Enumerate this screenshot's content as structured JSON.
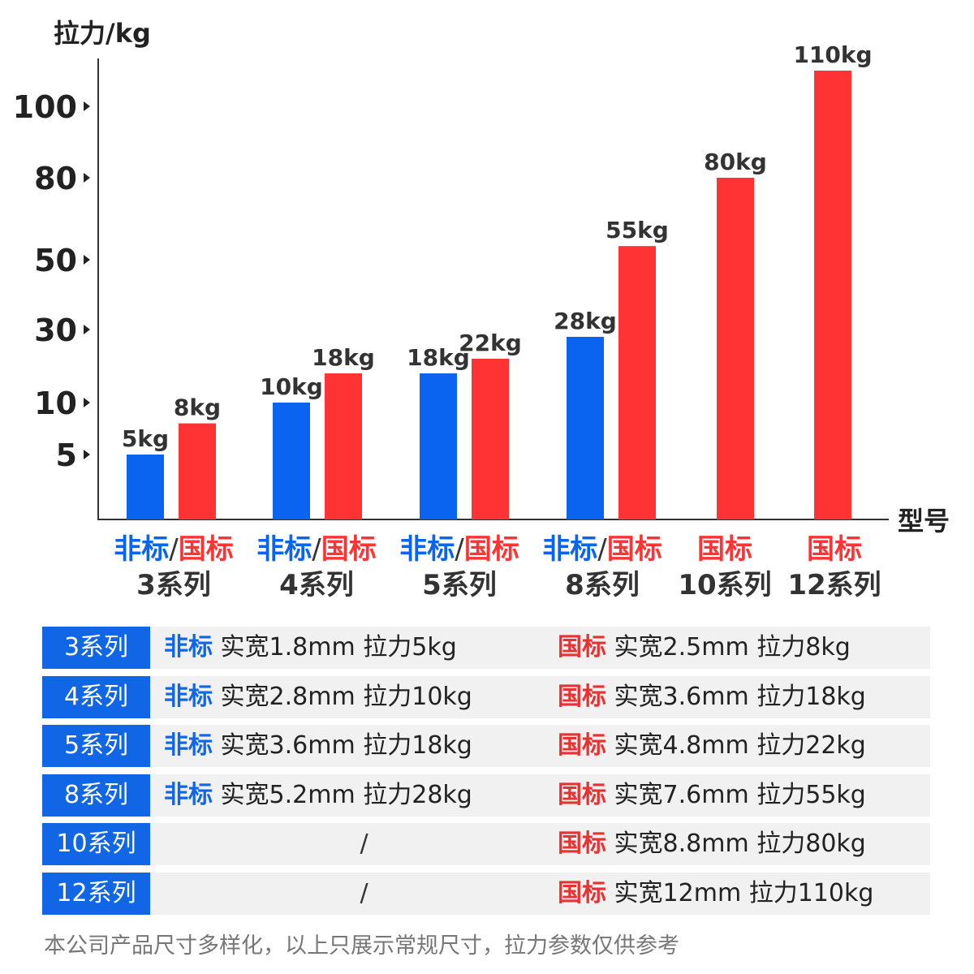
{
  "chart_data": {
    "type": "bar",
    "ylabel": "拉力/kg",
    "xlabel": "型号",
    "y_ticks": [
      {
        "label": "5",
        "value": 5
      },
      {
        "label": "10",
        "value": 10
      },
      {
        "label": "30",
        "value": 30
      },
      {
        "label": "50",
        "value": 50
      },
      {
        "label": "80",
        "value": 80
      },
      {
        "label": "100",
        "value": 100
      }
    ],
    "y_scale_note": "non-linear axis: ticks mapped piecewise",
    "legend": {
      "nonstandard": "非标",
      "standard": "国标",
      "separator": "/"
    },
    "categories": [
      {
        "name": "3系列",
        "kinds": "非标/国标"
      },
      {
        "name": "4系列",
        "kinds": "非标/国标"
      },
      {
        "name": "5系列",
        "kinds": "非标/国标"
      },
      {
        "name": "8系列",
        "kinds": "非标/国标"
      },
      {
        "name": "10系列",
        "kinds": "国标"
      },
      {
        "name": "12系列",
        "kinds": "国标"
      }
    ],
    "series": [
      {
        "name": "非标",
        "color": "#0a64f0",
        "values": [
          5,
          10,
          18,
          28,
          null,
          null
        ],
        "labels": [
          "5kg",
          "10kg",
          "18kg",
          "28kg",
          null,
          null
        ]
      },
      {
        "name": "国标",
        "color": "#ff3333",
        "values": [
          8,
          18,
          22,
          55,
          80,
          110
        ],
        "labels": [
          "8kg",
          "18kg",
          "22kg",
          "55kg",
          "80kg",
          "110kg"
        ]
      }
    ]
  },
  "table": {
    "rows": [
      {
        "series": "3系列",
        "nonstd_tag": "非标",
        "nonstd_text": "实宽1.8mm 拉力5kg",
        "std_tag": "国标",
        "std_text": "实宽2.5mm 拉力8kg"
      },
      {
        "series": "4系列",
        "nonstd_tag": "非标",
        "nonstd_text": "实宽2.8mm 拉力10kg",
        "std_tag": "国标",
        "std_text": "实宽3.6mm 拉力18kg"
      },
      {
        "series": "5系列",
        "nonstd_tag": "非标",
        "nonstd_text": "实宽3.6mm 拉力18kg",
        "std_tag": "国标",
        "std_text": "实宽4.8mm 拉力22kg"
      },
      {
        "series": "8系列",
        "nonstd_tag": "非标",
        "nonstd_text": "实宽5.2mm 拉力28kg",
        "std_tag": "国标",
        "std_text": "实宽7.6mm 拉力55kg"
      },
      {
        "series": "10系列",
        "nonstd_empty": "/",
        "std_tag": "国标",
        "std_text": "实宽8.8mm 拉力80kg"
      },
      {
        "series": "12系列",
        "nonstd_empty": "/",
        "std_tag": "国标",
        "std_text": "实宽12mm 拉力110kg"
      }
    ]
  },
  "footnote": "本公司产品尺寸多样化，以上只展示常规尺寸，拉力参数仅供参考",
  "colors": {
    "blue": "#0a64f0",
    "red": "#ff3333",
    "axis": "#333333",
    "table_header": "#1166e6"
  }
}
